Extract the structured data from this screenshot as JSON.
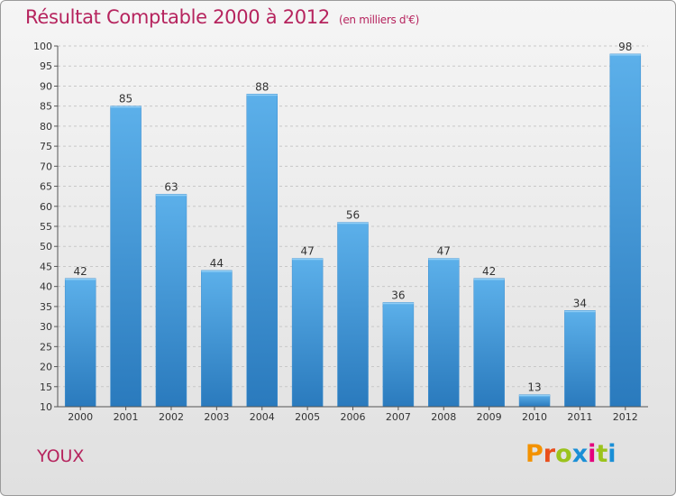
{
  "title": "Résultat Comptable 2000 à 2012",
  "subtitle": "(en milliers d'€)",
  "commune": "YOUX",
  "logo": {
    "text": "Proxiti",
    "letters": [
      "P",
      "r",
      "o",
      "x",
      "i",
      "t",
      "i"
    ],
    "colors": [
      "#f39200",
      "#e94e1b",
      "#9bc31c",
      "#1a8fd6",
      "#e4007c",
      "#9bc31c",
      "#1a8fd6"
    ]
  },
  "colors": {
    "title": "#b6245e",
    "bar_top": "#5cb0ea",
    "bar_bottom": "#2a7abd",
    "grid": "#c8c8c8",
    "axis": "#555555"
  },
  "chart_data": {
    "type": "bar",
    "title": "Résultat Comptable 2000 à 2012",
    "ylabel": "en milliers d'€",
    "categories": [
      "2000",
      "2001",
      "2002",
      "2003",
      "2004",
      "2005",
      "2006",
      "2007",
      "2008",
      "2009",
      "2010",
      "2011",
      "2012"
    ],
    "values": [
      42,
      85,
      63,
      44,
      88,
      47,
      56,
      36,
      47,
      42,
      13,
      34,
      98
    ],
    "ylim": [
      10,
      100
    ],
    "ytick_step": 5,
    "grid": true
  }
}
